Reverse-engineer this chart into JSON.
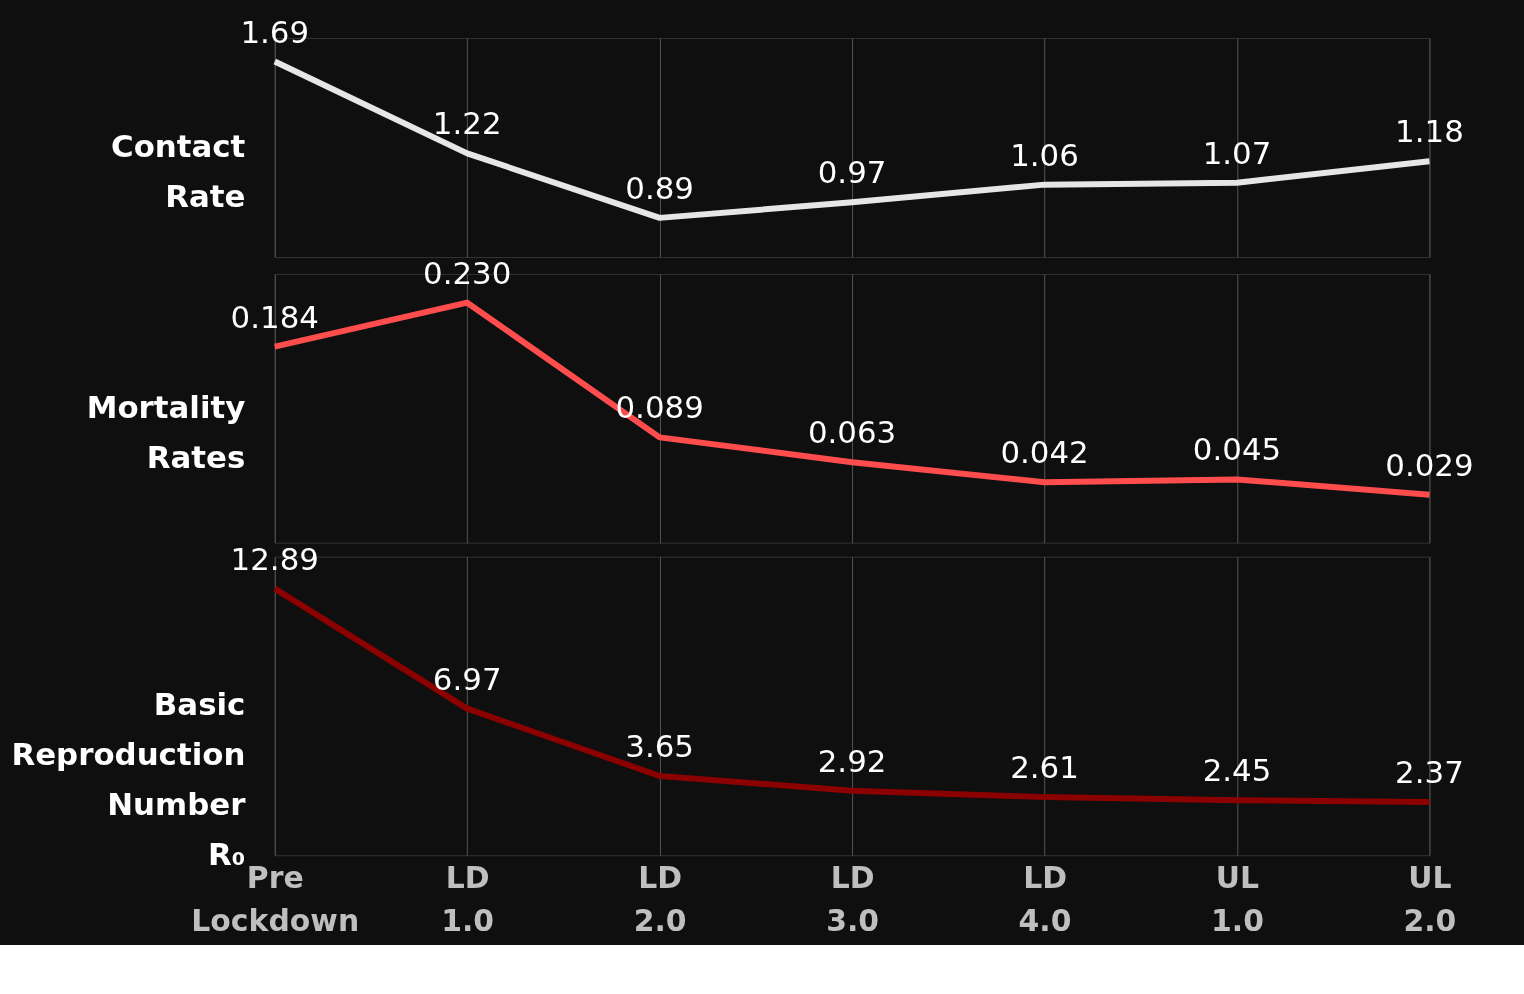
{
  "chart_data": [
    {
      "type": "line",
      "ylabel": "Contact Rate",
      "tick_labels": false,
      "grid": "x",
      "data_labels": true,
      "marker": "none",
      "series": [
        {
          "color": "#e6e6e6",
          "values": [
            1.69,
            1.22,
            0.89,
            0.97,
            1.06,
            1.07,
            1.18
          ]
        }
      ]
    },
    {
      "type": "line",
      "ylabel": "Mortality Rates",
      "tick_labels": false,
      "grid": "x",
      "data_labels": true,
      "marker": "none",
      "series": [
        {
          "color": "#ff4d4d",
          "values": [
            0.184,
            0.23,
            0.089,
            0.063,
            0.042,
            0.045,
            0.029
          ],
          "value_labels": [
            "0.184",
            "0.230",
            "0.089",
            "0.063",
            "0.042",
            "0.045",
            "0.029"
          ]
        }
      ]
    },
    {
      "type": "line",
      "ylabel": "Basic Reproduction Number R₀",
      "categories": [
        "Pre Lockdown",
        "LD 1.0",
        "LD 2.0",
        "LD 3.0",
        "LD 4.0",
        "UL 1.0",
        "UL 2.0"
      ],
      "tick_labels": "x",
      "grid": "x",
      "data_labels": true,
      "marker": "none",
      "series": [
        {
          "color": "#8b0000",
          "values": [
            12.89,
            6.97,
            3.65,
            2.92,
            2.61,
            2.45,
            2.37
          ]
        }
      ]
    }
  ]
}
